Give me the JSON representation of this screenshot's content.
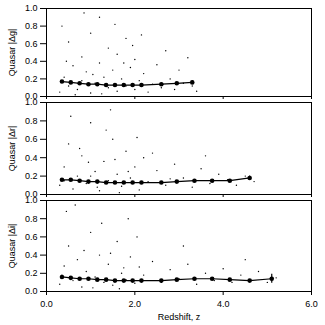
{
  "chart_data": [
    {
      "type": "scatter",
      "y_label": "Quasar |Δg|",
      "color": "#000000",
      "tick_labels": "y",
      "xlim": [
        0,
        6
      ],
      "xticks": [
        0,
        2,
        4,
        6
      ],
      "ylim": [
        0,
        1
      ],
      "yticks": [
        0,
        0.2,
        0.4,
        0.6,
        0.8,
        1
      ],
      "points": {
        "x": [
          0.3,
          0.4,
          0.5,
          0.5,
          0.6,
          0.7,
          0.8,
          0.8,
          0.9,
          1.0,
          1.0,
          1.1,
          1.2,
          1.2,
          1.3,
          1.4,
          1.4,
          1.5,
          1.6,
          1.6,
          1.7,
          1.8,
          1.8,
          1.9,
          2.0,
          2.0,
          2.1,
          2.2,
          2.3,
          2.4,
          2.5,
          2.6,
          2.7,
          2.8,
          2.9,
          3.0,
          3.1,
          3.2,
          3.3,
          3.4,
          0.35,
          0.65,
          1.05,
          1.55,
          1.95,
          0.45,
          1.25,
          1.75,
          2.15,
          0.85
        ],
        "y": [
          0.05,
          0.22,
          0.62,
          0.12,
          0.35,
          0.08,
          0.45,
          0.18,
          0.28,
          0.72,
          0.04,
          0.15,
          0.38,
          0.9,
          0.22,
          0.1,
          0.55,
          0.3,
          0.06,
          0.48,
          0.2,
          0.12,
          0.66,
          0.33,
          0.08,
          0.42,
          0.18,
          0.26,
          0.05,
          0.14,
          0.36,
          0.1,
          0.52,
          0.2,
          0.08,
          0.3,
          0.15,
          0.44,
          0.12,
          0.06,
          0.8,
          0.02,
          0.25,
          0.82,
          0.58,
          0.4,
          0.03,
          0.38,
          0.7,
          0.95
        ]
      },
      "binned": {
        "x": [
          0.35,
          0.55,
          0.75,
          0.95,
          1.15,
          1.35,
          1.55,
          1.75,
          1.95,
          2.15,
          2.6,
          2.95,
          3.3
        ],
        "values": [
          0.17,
          0.16,
          0.15,
          0.14,
          0.14,
          0.13,
          0.13,
          0.13,
          0.13,
          0.13,
          0.14,
          0.15,
          0.16
        ],
        "errors": [
          0.01,
          0.01,
          0.01,
          0.01,
          0.01,
          0.01,
          0.01,
          0.01,
          0.01,
          0.01,
          0.01,
          0.01,
          0.02
        ]
      }
    },
    {
      "type": "scatter",
      "y_label": "Quasar |Δr|",
      "color": "#000000",
      "tick_labels": "y",
      "xlim": [
        0,
        6
      ],
      "xticks": [
        0,
        2,
        4,
        6
      ],
      "ylim": [
        0,
        1
      ],
      "yticks": [
        0,
        0.2,
        0.4,
        0.6,
        0.8,
        1
      ],
      "points": {
        "x": [
          0.3,
          0.4,
          0.5,
          0.6,
          0.7,
          0.8,
          0.9,
          1.0,
          1.1,
          1.2,
          1.3,
          1.4,
          1.5,
          1.6,
          1.7,
          1.8,
          1.9,
          2.0,
          2.1,
          2.2,
          2.3,
          2.5,
          2.7,
          2.9,
          3.1,
          3.3,
          3.5,
          3.7,
          3.9,
          4.1,
          4.3,
          4.5,
          4.7,
          0.55,
          0.95,
          1.35,
          1.65,
          1.85,
          2.05,
          0.75,
          1.15,
          1.45,
          2.4,
          2.8,
          3.6,
          0.4,
          1.0,
          1.55
        ],
        "y": [
          0.1,
          0.3,
          0.55,
          0.06,
          0.2,
          0.42,
          0.12,
          0.78,
          0.25,
          0.04,
          0.36,
          0.15,
          0.6,
          0.22,
          0.09,
          0.47,
          0.18,
          0.3,
          0.05,
          0.4,
          0.14,
          0.26,
          0.1,
          0.33,
          0.18,
          0.08,
          0.28,
          0.12,
          0.22,
          0.16,
          0.1,
          0.2,
          0.14,
          0.85,
          0.35,
          0.7,
          0.02,
          0.25,
          0.62,
          0.5,
          0.08,
          0.92,
          0.45,
          0.17,
          0.42,
          0.15,
          0.2,
          0.38
        ]
      },
      "binned": {
        "x": [
          0.35,
          0.55,
          0.75,
          0.95,
          1.15,
          1.35,
          1.55,
          1.75,
          1.95,
          2.15,
          2.6,
          2.95,
          3.35,
          3.75,
          4.15,
          4.6
        ],
        "values": [
          0.16,
          0.16,
          0.15,
          0.14,
          0.14,
          0.13,
          0.13,
          0.13,
          0.13,
          0.13,
          0.13,
          0.14,
          0.15,
          0.15,
          0.15,
          0.18
        ],
        "errors": [
          0.01,
          0.01,
          0.01,
          0.01,
          0.01,
          0.01,
          0.01,
          0.01,
          0.01,
          0.01,
          0.01,
          0.01,
          0.01,
          0.01,
          0.01,
          0.02
        ]
      }
    },
    {
      "type": "scatter",
      "y_label": "Quasar |Δi|",
      "x_label": "Redshift, z",
      "color": "#000000",
      "xlim": [
        0,
        6
      ],
      "xticks": [
        0,
        2,
        4,
        6
      ],
      "ylim": [
        0,
        1
      ],
      "yticks": [
        0,
        0.2,
        0.4,
        0.6,
        0.8,
        1
      ],
      "points": {
        "x": [
          0.3,
          0.4,
          0.5,
          0.6,
          0.7,
          0.8,
          0.9,
          1.0,
          1.1,
          1.2,
          1.3,
          1.4,
          1.5,
          1.6,
          1.7,
          1.8,
          1.9,
          2.0,
          2.1,
          2.2,
          2.4,
          2.6,
          2.8,
          3.0,
          3.2,
          3.4,
          3.6,
          3.8,
          4.0,
          4.2,
          4.4,
          4.6,
          4.8,
          5.0,
          5.2,
          0.45,
          0.85,
          1.25,
          1.65,
          2.05,
          0.65,
          1.05,
          1.45,
          1.85,
          3.1,
          4.5,
          0.35,
          1.75
        ],
        "y": [
          0.08,
          0.28,
          0.5,
          0.12,
          0.35,
          0.05,
          0.22,
          0.65,
          0.16,
          0.4,
          0.1,
          0.3,
          0.07,
          0.55,
          0.2,
          0.13,
          0.38,
          0.09,
          0.27,
          0.18,
          0.33,
          0.1,
          0.24,
          0.14,
          0.3,
          0.08,
          0.2,
          0.12,
          0.25,
          0.1,
          0.18,
          0.12,
          0.22,
          0.1,
          0.15,
          0.88,
          0.45,
          0.75,
          0.03,
          0.6,
          0.95,
          0.04,
          0.42,
          0.8,
          0.5,
          0.35,
          0.18,
          0.26
        ]
      },
      "binned": {
        "x": [
          0.35,
          0.55,
          0.75,
          0.95,
          1.15,
          1.35,
          1.55,
          1.75,
          1.95,
          2.15,
          2.6,
          2.95,
          3.35,
          3.75,
          4.15,
          4.6,
          5.1
        ],
        "values": [
          0.16,
          0.15,
          0.14,
          0.14,
          0.13,
          0.13,
          0.12,
          0.12,
          0.12,
          0.12,
          0.12,
          0.13,
          0.14,
          0.14,
          0.13,
          0.12,
          0.14
        ],
        "errors": [
          0.01,
          0.01,
          0.01,
          0.01,
          0.01,
          0.01,
          0.01,
          0.01,
          0.01,
          0.01,
          0.01,
          0.01,
          0.01,
          0.01,
          0.01,
          0.01,
          0.05
        ]
      }
    }
  ]
}
